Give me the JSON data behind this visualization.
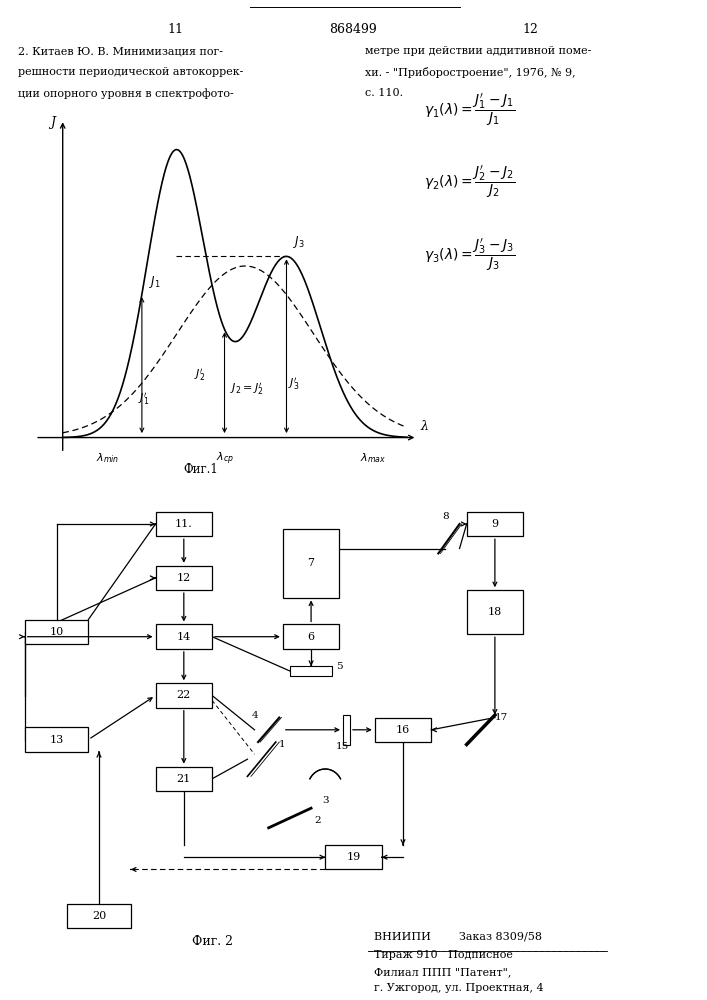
{
  "page_number_left": "11",
  "page_number_right": "12",
  "patent_number": "868499",
  "left_text_lines": [
    "2. Китаев Ю. В. Минимизация пог-",
    "решности периодической автокоррек-",
    "ции опорного уровня в спектрофото-"
  ],
  "right_text_lines": [
    "метре при действии аддитивной поме-",
    "хи. - \"Приборостроение\", 1976, № 9,",
    "с. 110."
  ],
  "fig1_caption": "Фиг.1",
  "fig2_caption": "Фиг. 2",
  "bottom_line1": "ВНИИПИ        Заказ 8309/58",
  "bottom_line2": "Тираж 910   Подписное",
  "bottom_line3": "Филиал ППП \"Патент\",",
  "bottom_line4": "г. Ужгород, ул. Проектная, 4",
  "background_color": "#ffffff"
}
